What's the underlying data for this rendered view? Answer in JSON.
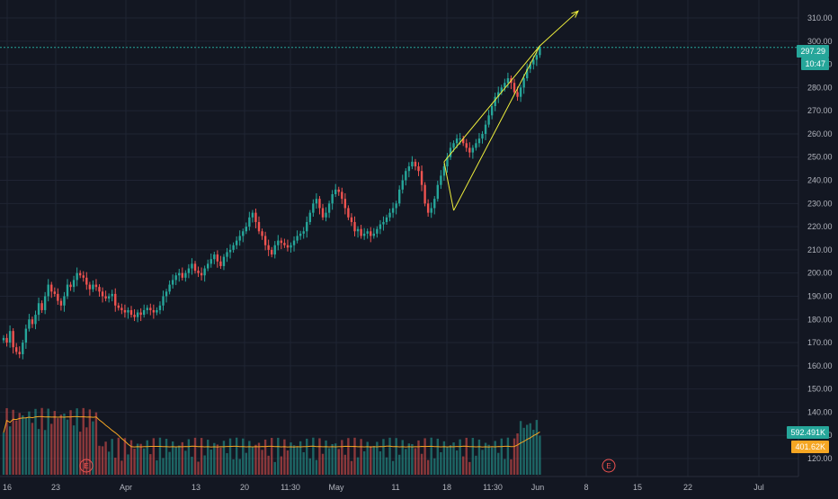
{
  "chart_data": {
    "type": "candlestick",
    "x_tick_labels": [
      "16",
      "23",
      "Apr",
      "13",
      "20",
      "11:30",
      "May",
      "11",
      "18",
      "11:30",
      "Jun",
      "8",
      "15",
      "22",
      "Jul"
    ],
    "y_tick_labels": [
      "120.00",
      "130.00",
      "140.00",
      "150.00",
      "160.00",
      "170.00",
      "180.00",
      "190.00",
      "200.00",
      "210.00",
      "220.00",
      "230.00",
      "240.00",
      "250.00",
      "260.00",
      "270.00",
      "280.00",
      "290.00",
      "300.00",
      "310.00"
    ],
    "ylim": [
      115,
      318
    ],
    "price_close": [
      172,
      170,
      175,
      168,
      166,
      165,
      170,
      176,
      180,
      178,
      182,
      187,
      184,
      190,
      195,
      192,
      191,
      188,
      186,
      190,
      195,
      194,
      197,
      200,
      199,
      198,
      195,
      193,
      195,
      194,
      192,
      190,
      189,
      190,
      191,
      186,
      185,
      184,
      183,
      184,
      182,
      181,
      183,
      182,
      184,
      185,
      184,
      183,
      184,
      186,
      190,
      192,
      195,
      197,
      199,
      200,
      198,
      200,
      202,
      204,
      201,
      200,
      199,
      202,
      204,
      206,
      208,
      205,
      203,
      207,
      209,
      210,
      212,
      214,
      216,
      218,
      220,
      224,
      226,
      222,
      218,
      216,
      212,
      210,
      208,
      212,
      214,
      213,
      212,
      211,
      212,
      214,
      216,
      217,
      218,
      222,
      226,
      230,
      232,
      228,
      224,
      226,
      230,
      234,
      236,
      235,
      232,
      228,
      224,
      222,
      218,
      219,
      216,
      217,
      218,
      216,
      217,
      219,
      221,
      222,
      224,
      226,
      228,
      230,
      236,
      240,
      244,
      246,
      248,
      246,
      244,
      238,
      230,
      226,
      228,
      232,
      238,
      242,
      246,
      250,
      254,
      256,
      258,
      258,
      256,
      254,
      252,
      254,
      256,
      258,
      260,
      264,
      268,
      272,
      276,
      278,
      280,
      282,
      284,
      282,
      278,
      276,
      280,
      284,
      288,
      290,
      292,
      294,
      297
    ],
    "current_price": "297.29",
    "countdown": "10:47",
    "volume_current": "592.491K",
    "volume_ma": "401.62K",
    "earnings_marker": "E",
    "trendlines": [
      {
        "from": {
          "bar": 138,
          "price": 248
        },
        "to": {
          "bar": 168,
          "price": 298
        }
      },
      {
        "from": {
          "bar": 138,
          "price": 248
        },
        "to": {
          "bar": 141,
          "price": 227
        }
      },
      {
        "from": {
          "bar": 141,
          "price": 227
        },
        "to": {
          "bar": 168,
          "price": 298
        }
      }
    ],
    "arrow": {
      "from": {
        "bar": 168,
        "price": 298
      },
      "to": {
        "bar": 180,
        "price": 313
      }
    },
    "grid": true,
    "colors": {
      "up": "#26a69a",
      "down": "#ef5350",
      "drawing": "#f0f03c",
      "price_line": "#26a69a",
      "ma": "#f5a623",
      "background": "#131722",
      "grid": "#1f2433"
    }
  }
}
